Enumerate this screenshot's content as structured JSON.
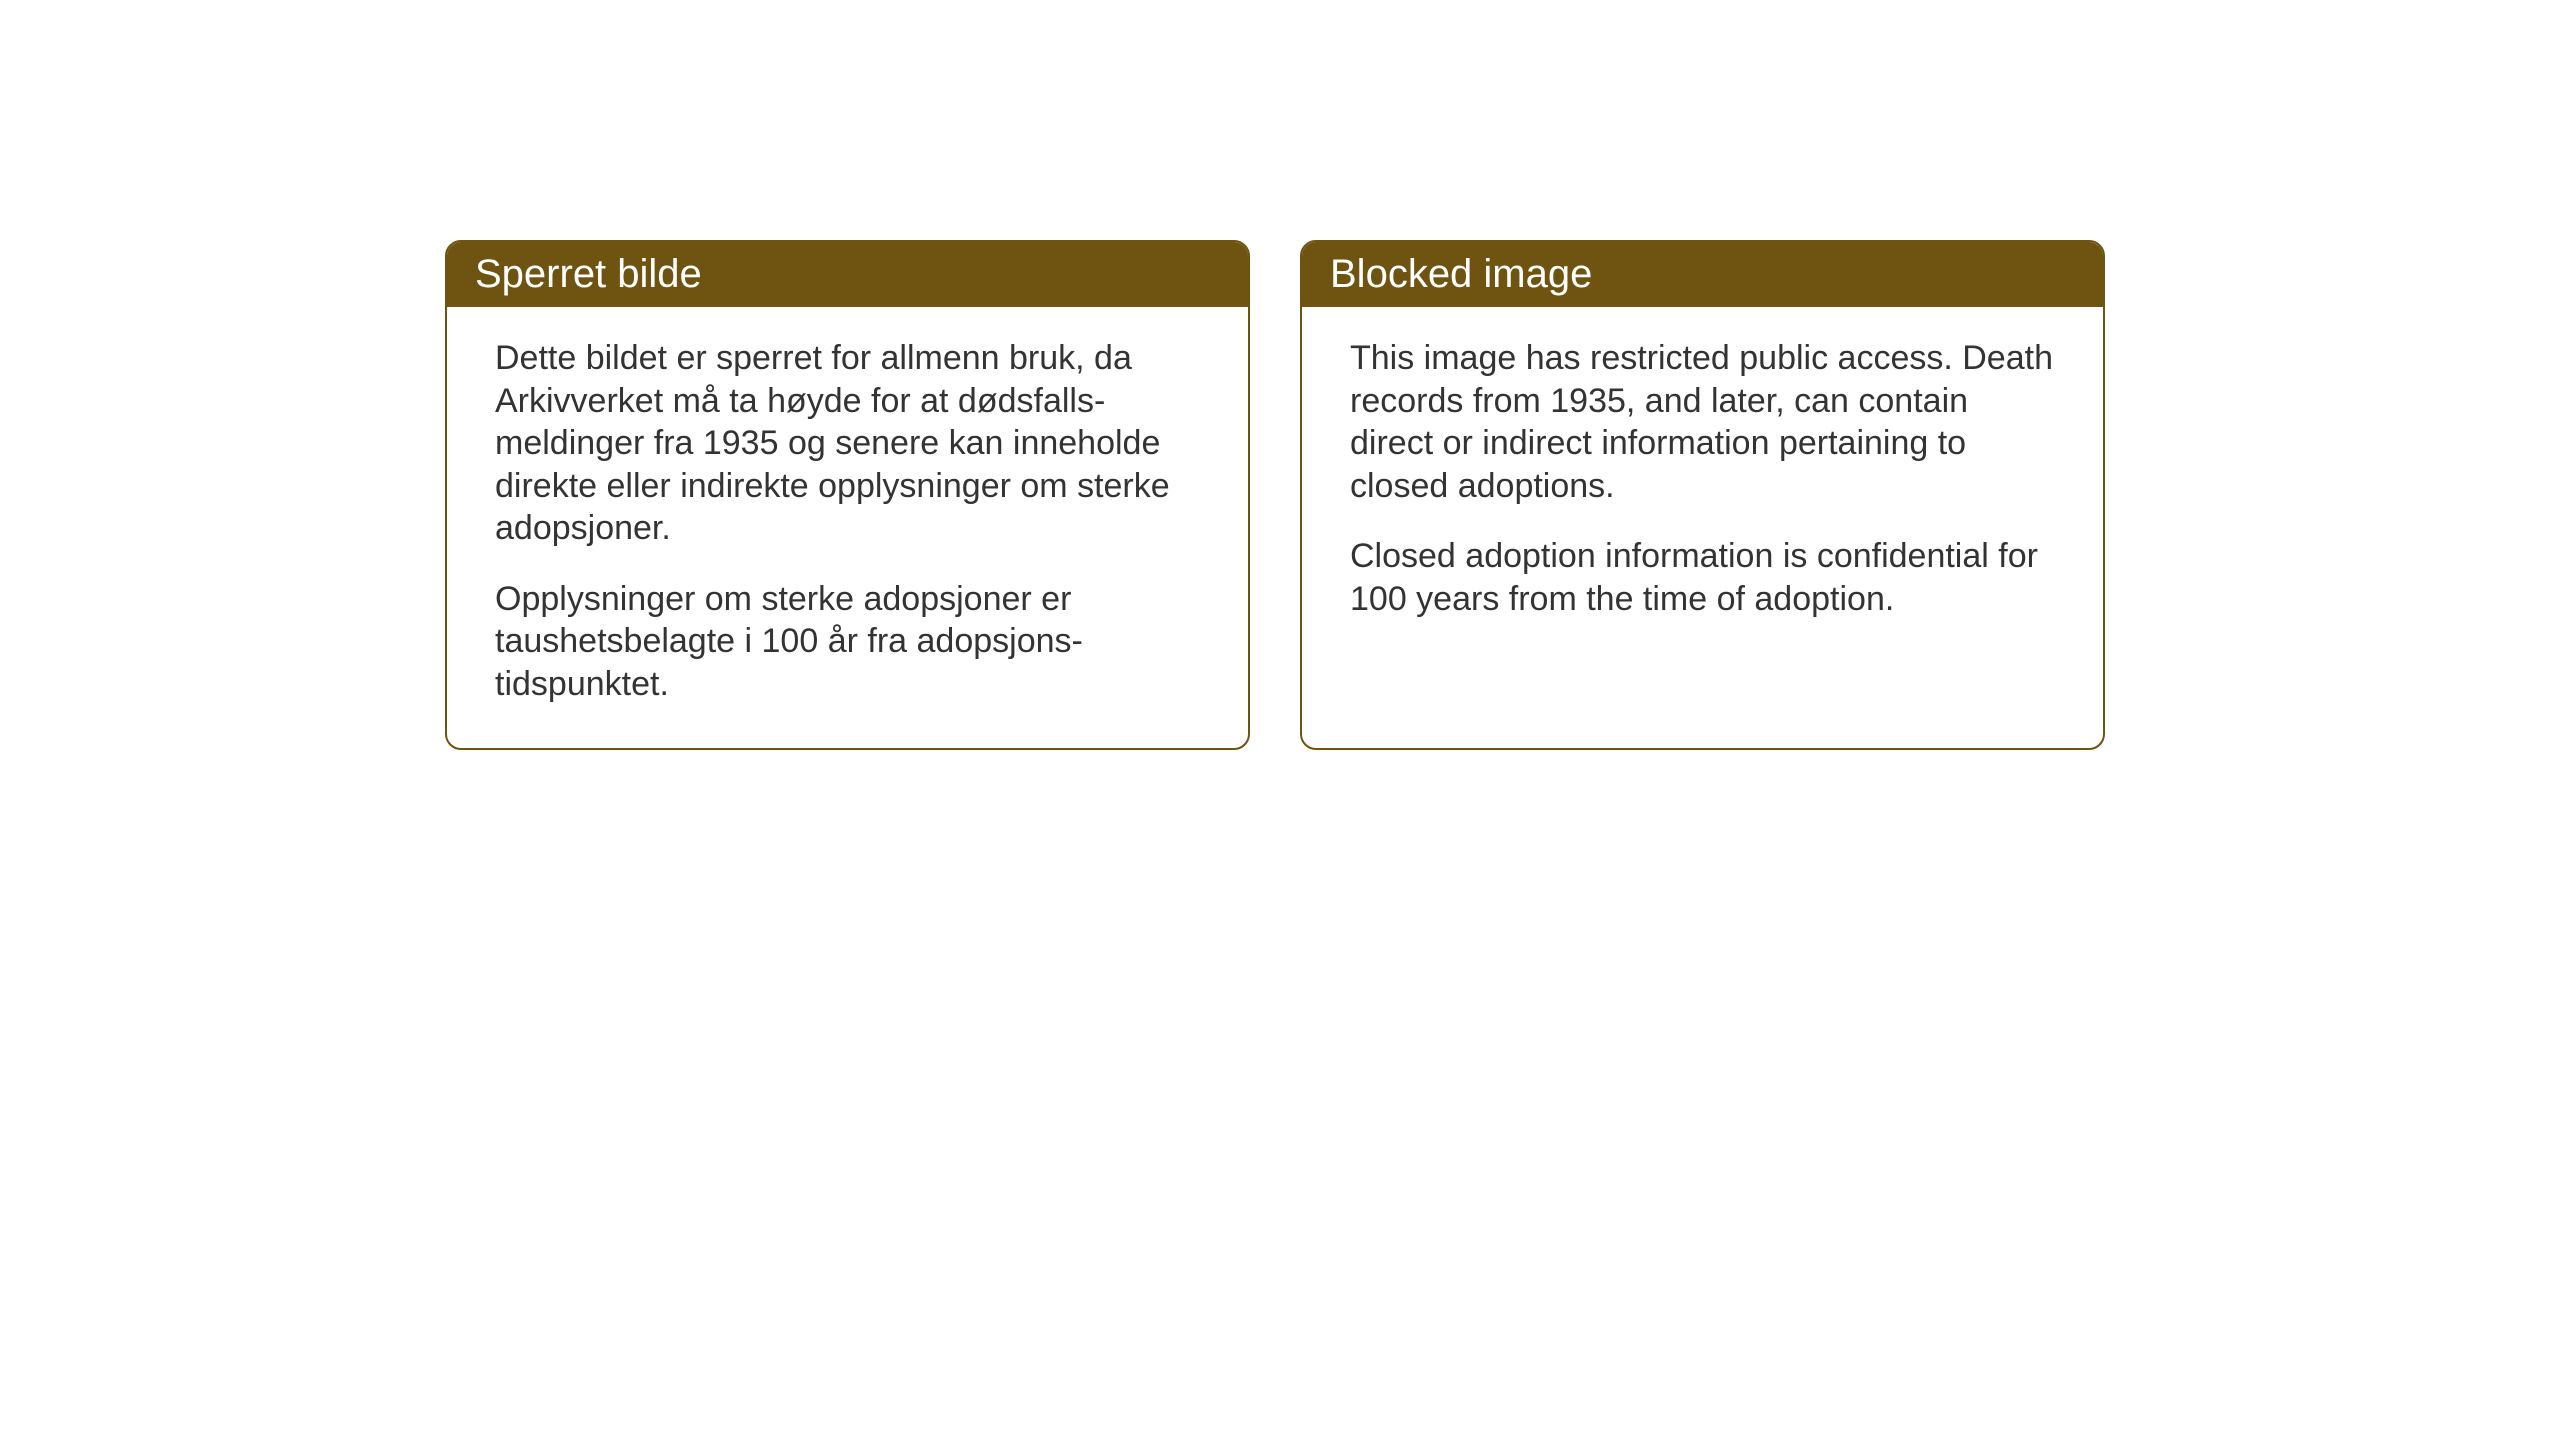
{
  "cards": {
    "norwegian": {
      "title": "Sperret bilde",
      "paragraph1": "Dette bildet er sperret for allmenn bruk, da Arkivverket må ta høyde for at dødsfalls-meldinger fra 1935 og senere kan inneholde direkte eller indirekte opplysninger om sterke adopsjoner.",
      "paragraph2": "Opplysninger om sterke adopsjoner er taushetsbelagte i 100 år fra adopsjons-tidspunktet."
    },
    "english": {
      "title": "Blocked image",
      "paragraph1": "This image has restricted public access. Death records from 1935, and later, can contain direct or indirect information pertaining to closed adoptions.",
      "paragraph2": "Closed adoption information is confidential for 100 years from the time of adoption."
    }
  },
  "styling": {
    "header_background_color": "#6e5410",
    "header_text_color": "#ffffff",
    "border_color": "#6e5410",
    "body_text_color": "#333333",
    "card_background_color": "#ffffff",
    "page_background_color": "#ffffff",
    "header_font_size": 40,
    "body_font_size": 34,
    "border_radius": 16,
    "border_width": 2
  }
}
